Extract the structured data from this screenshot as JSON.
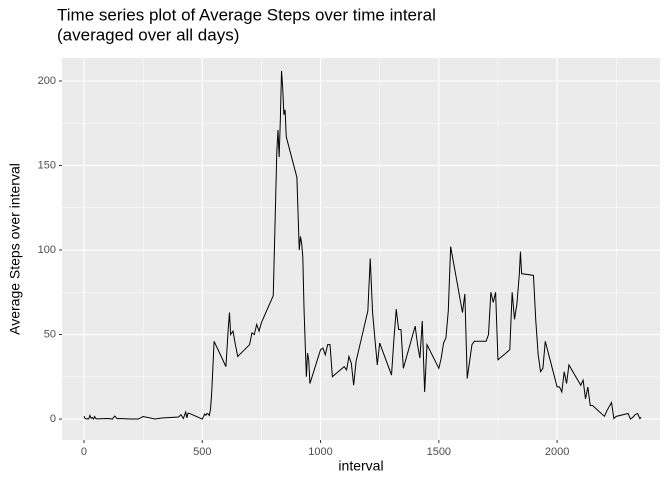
{
  "chart_data": {
    "type": "line",
    "title": [
      "Time series plot of Average Steps over time interal",
      "(averaged over all days)"
    ],
    "x_label": "interval",
    "y_label": "Average Steps over interval",
    "x": [
      0,
      5,
      10,
      15,
      20,
      25,
      30,
      35,
      40,
      45,
      50,
      55,
      100,
      110,
      120,
      130,
      140,
      150,
      200,
      230,
      250,
      300,
      330,
      400,
      410,
      420,
      430,
      435,
      440,
      450,
      500,
      510,
      515,
      520,
      525,
      530,
      535,
      540,
      550,
      600,
      610,
      615,
      620,
      630,
      640,
      650,
      700,
      710,
      720,
      730,
      740,
      750,
      800,
      810,
      815,
      820,
      825,
      830,
      835,
      840,
      845,
      850,
      855,
      900,
      910,
      915,
      920,
      925,
      930,
      935,
      940,
      945,
      950,
      955,
      1000,
      1010,
      1020,
      1030,
      1040,
      1050,
      1100,
      1110,
      1120,
      1130,
      1140,
      1150,
      1200,
      1210,
      1220,
      1230,
      1240,
      1250,
      1300,
      1310,
      1320,
      1330,
      1340,
      1350,
      1400,
      1410,
      1420,
      1430,
      1440,
      1450,
      1500,
      1510,
      1520,
      1530,
      1540,
      1550,
      1600,
      1610,
      1620,
      1630,
      1640,
      1650,
      1700,
      1710,
      1720,
      1730,
      1740,
      1750,
      1800,
      1810,
      1820,
      1830,
      1840,
      1845,
      1850,
      1900,
      1910,
      1920,
      1930,
      1940,
      1950,
      2000,
      2010,
      2020,
      2030,
      2040,
      2050,
      2100,
      2110,
      2120,
      2130,
      2140,
      2150,
      2200,
      2210,
      2220,
      2230,
      2240,
      2250,
      2300,
      2310,
      2320,
      2330,
      2340,
      2350,
      2355
    ],
    "series": [
      {
        "name": "steps",
        "color": "#000000",
        "values": [
          1.7,
          0.3,
          0.1,
          0.2,
          0.1,
          2.1,
          0.5,
          0.9,
          0,
          1.5,
          0.3,
          0.1,
          0.3,
          0.2,
          0,
          1.8,
          0.2,
          0.3,
          0,
          0,
          1.5,
          0,
          0.6,
          1.2,
          2.6,
          0.3,
          4.1,
          0.7,
          3.5,
          3.1,
          0,
          3,
          2.2,
          3.3,
          3,
          2.1,
          6,
          16,
          46,
          31,
          54,
          63,
          50,
          52,
          44,
          37,
          44,
          51,
          50,
          56,
          52,
          57,
          73,
          129,
          158,
          171,
          155,
          177,
          206,
          196,
          180,
          183,
          167,
          143,
          100,
          108,
          104,
          96,
          66,
          45,
          25,
          39,
          35,
          21,
          41,
          42,
          38,
          44,
          44,
          25,
          31,
          29,
          37,
          33,
          20,
          34,
          64,
          95,
          63,
          47,
          32,
          45,
          26,
          47,
          65,
          53,
          53,
          30,
          55,
          44,
          36,
          58,
          16,
          44,
          30,
          36,
          45,
          48,
          64,
          102,
          63,
          74,
          24,
          34,
          44,
          46,
          46,
          50,
          75,
          69,
          75,
          35,
          41,
          75,
          59,
          68,
          85,
          99,
          86,
          85,
          58,
          38,
          28,
          30,
          46,
          19,
          19,
          16,
          28,
          21,
          32,
          20,
          23,
          12,
          19,
          8,
          8,
          1.6,
          4.8,
          7.3,
          9.8,
          0.3,
          1.6,
          3.3,
          0,
          1,
          2.6,
          3.3,
          0.2,
          1.1
        ]
      }
    ],
    "xlim": [
      -93,
      2435
    ],
    "ylim": [
      -12.4,
      213.6
    ],
    "xticks": [
      0,
      500,
      1000,
      1500,
      2000
    ],
    "yticks": [
      0,
      50,
      100,
      150,
      200
    ],
    "x_minor_breaks": [
      250,
      750,
      1250,
      1750,
      2250
    ],
    "y_minor_breaks": [
      25,
      75,
      125,
      175
    ],
    "grid": true
  }
}
